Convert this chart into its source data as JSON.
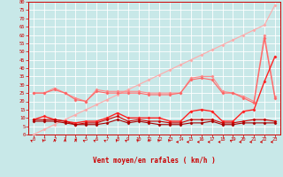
{
  "xlabel": "Vent moyen/en rafales ( km/h )",
  "bg_color": "#c8e8e8",
  "grid_color": "#ffffff",
  "xlim": [
    -0.5,
    23.5
  ],
  "ylim": [
    0,
    80
  ],
  "ytick_vals": [
    0,
    5,
    10,
    15,
    20,
    25,
    30,
    35,
    40,
    45,
    50,
    55,
    60,
    65,
    70,
    75,
    80
  ],
  "xtick_vals": [
    0,
    1,
    2,
    3,
    4,
    5,
    6,
    7,
    8,
    9,
    10,
    11,
    12,
    13,
    14,
    15,
    16,
    17,
    18,
    19,
    20,
    21,
    22,
    23
  ],
  "series": [
    {
      "color": "#ffaaaa",
      "x": [
        0,
        1,
        2,
        3,
        4,
        5,
        6,
        7,
        8,
        9,
        10,
        11,
        12,
        13,
        14,
        15,
        16,
        17,
        18,
        19,
        20,
        21,
        22,
        23
      ],
      "y": [
        0,
        3,
        6,
        9,
        12,
        15,
        18,
        21,
        24,
        27,
        30,
        33,
        36,
        39,
        42,
        45,
        48,
        51,
        54,
        57,
        60,
        63,
        66,
        78
      ],
      "marker": "D",
      "ms": 1.5,
      "lw": 0.8,
      "mew": 0.5
    },
    {
      "color": "#ff8888",
      "x": [
        0,
        1,
        2,
        3,
        4,
        5,
        6,
        7,
        8,
        9,
        10,
        11,
        12,
        13,
        14,
        15,
        16,
        17,
        18,
        19,
        20,
        21,
        22,
        23
      ],
      "y": [
        25,
        25,
        28,
        25,
        22,
        20,
        27,
        26,
        26,
        26,
        26,
        25,
        25,
        25,
        25,
        34,
        35,
        35,
        26,
        25,
        23,
        20,
        60,
        23
      ],
      "marker": "D",
      "ms": 1.5,
      "lw": 0.8,
      "mew": 0.5
    },
    {
      "color": "#ff6666",
      "x": [
        0,
        1,
        2,
        3,
        4,
        5,
        6,
        7,
        8,
        9,
        10,
        11,
        12,
        13,
        14,
        15,
        16,
        17,
        18,
        19,
        20,
        21,
        22,
        23
      ],
      "y": [
        25,
        25,
        27,
        25,
        21,
        20,
        26,
        25,
        25,
        25,
        25,
        24,
        24,
        24,
        25,
        33,
        34,
        33,
        25,
        25,
        22,
        19,
        58,
        22
      ],
      "marker": "D",
      "ms": 1.5,
      "lw": 0.8,
      "mew": 0.5
    },
    {
      "color": "#ff2222",
      "x": [
        0,
        1,
        2,
        3,
        4,
        5,
        6,
        7,
        8,
        9,
        10,
        11,
        12,
        13,
        14,
        15,
        16,
        17,
        18,
        19,
        20,
        21,
        22,
        23
      ],
      "y": [
        9,
        11,
        9,
        8,
        7,
        8,
        8,
        10,
        13,
        10,
        10,
        10,
        10,
        8,
        8,
        14,
        15,
        14,
        8,
        8,
        14,
        15,
        32,
        47
      ],
      "marker": "D",
      "ms": 1.5,
      "lw": 1.0,
      "mew": 0.5
    },
    {
      "color": "#cc0000",
      "x": [
        0,
        1,
        2,
        3,
        4,
        5,
        6,
        7,
        8,
        9,
        10,
        11,
        12,
        13,
        14,
        15,
        16,
        17,
        18,
        19,
        20,
        21,
        22,
        23
      ],
      "y": [
        9,
        9,
        9,
        8,
        6,
        7,
        7,
        9,
        11,
        8,
        9,
        8,
        8,
        7,
        7,
        9,
        9,
        9,
        7,
        7,
        8,
        9,
        9,
        8
      ],
      "marker": "D",
      "ms": 1.5,
      "lw": 0.8,
      "mew": 0.5
    },
    {
      "color": "#aa0000",
      "x": [
        0,
        1,
        2,
        3,
        4,
        5,
        6,
        7,
        8,
        9,
        10,
        11,
        12,
        13,
        14,
        15,
        16,
        17,
        18,
        19,
        20,
        21,
        22,
        23
      ],
      "y": [
        8,
        8,
        8,
        7,
        6,
        6,
        6,
        7,
        9,
        7,
        8,
        7,
        6,
        6,
        6,
        7,
        7,
        8,
        6,
        6,
        7,
        7,
        7,
        7
      ],
      "marker": "D",
      "ms": 1.5,
      "lw": 0.8,
      "mew": 0.5
    }
  ],
  "wind_directions": [
    225,
    202,
    180,
    180,
    180,
    225,
    225,
    225,
    202,
    225,
    202,
    180,
    202,
    202,
    270,
    270,
    270,
    270,
    270,
    225,
    270,
    270,
    270,
    270
  ],
  "arrow_color": "#cc0000"
}
